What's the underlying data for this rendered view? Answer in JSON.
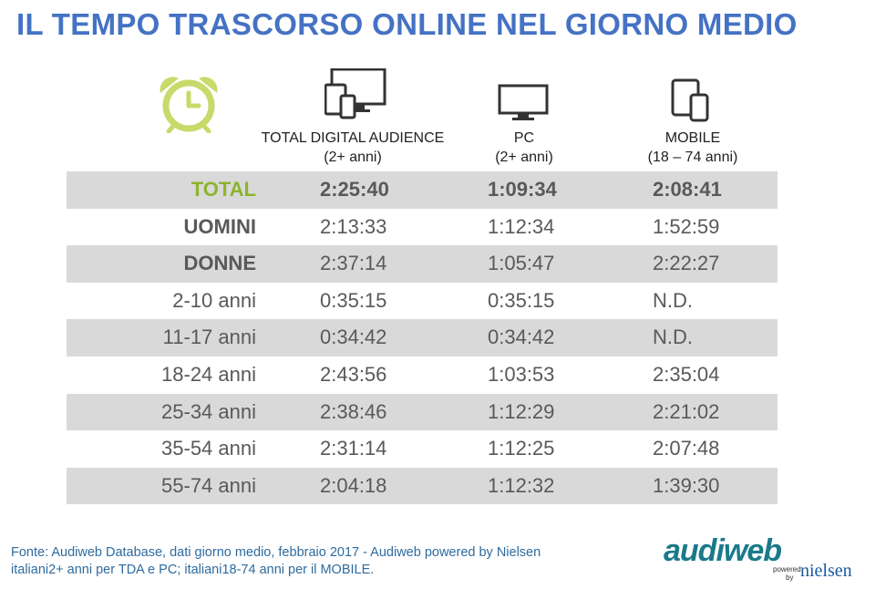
{
  "title": "IL TEMPO TRASCORSO ONLINE NEL GIORNO MEDIO",
  "icons": {
    "clock": "alarm-clock-icon",
    "all_devices": "devices-icon",
    "pc": "monitor-icon",
    "mobile": "mobile-tablet-icon"
  },
  "colors": {
    "title": "#4472c4",
    "clock": "#c9d96a",
    "total_label": "#8db42d",
    "row_shade": "#d9d9d9",
    "footer": "#2e6b9e"
  },
  "columns": [
    {
      "name": "TOTAL DIGITAL AUDIENCE",
      "sub": "(2+ anni)"
    },
    {
      "name": "PC",
      "sub": "(2+ anni)"
    },
    {
      "name": "MOBILE",
      "sub": "(18 – 74 anni)"
    }
  ],
  "rows": [
    {
      "label": "TOTAL",
      "values": [
        "2:25:40",
        "1:09:34",
        "2:08:41"
      ]
    },
    {
      "label": "UOMINI",
      "values": [
        "2:13:33",
        "1:12:34",
        "1:52:59"
      ]
    },
    {
      "label": "DONNE",
      "values": [
        "2:37:14",
        "1:05:47",
        "2:22:27"
      ]
    },
    {
      "label": "2-10 anni",
      "values": [
        "0:35:15",
        "0:35:15",
        "N.D."
      ]
    },
    {
      "label": "11-17 anni",
      "values": [
        "0:34:42",
        "0:34:42",
        "N.D."
      ]
    },
    {
      "label": "18-24 anni",
      "values": [
        "2:43:56",
        "1:03:53",
        "2:35:04"
      ]
    },
    {
      "label": "25-34 anni",
      "values": [
        "2:38:46",
        "1:12:29",
        "2:21:02"
      ]
    },
    {
      "label": "35-54 anni",
      "values": [
        "2:31:14",
        "1:12:25",
        "2:07:48"
      ]
    },
    {
      "label": "55-74 anni",
      "values": [
        "2:04:18",
        "1:12:32",
        "1:39:30"
      ]
    }
  ],
  "footer": {
    "line1": "Fonte: Audiweb Database, dati giorno medio, febbraio 2017 - Audiweb powered by Nielsen",
    "line2": "italiani2+ anni per TDA e PC; italiani18-74 anni per il MOBILE."
  },
  "logo": {
    "brand": "audiweb",
    "powered": "powered",
    "by": "by",
    "partner": "nielsen"
  }
}
